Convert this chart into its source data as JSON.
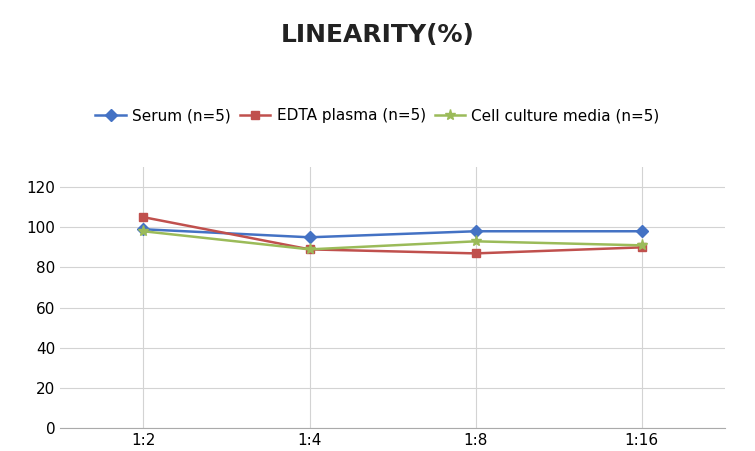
{
  "title": "LINEARITY(%)",
  "x_labels": [
    "1:2",
    "1:4",
    "1:8",
    "1:16"
  ],
  "x_positions": [
    0,
    1,
    2,
    3
  ],
  "series": [
    {
      "label": "Serum (n=5)",
      "values": [
        99,
        95,
        98,
        98
      ],
      "color": "#4472C4",
      "marker": "D",
      "markersize": 6,
      "linewidth": 1.8
    },
    {
      "label": "EDTA plasma (n=5)",
      "values": [
        105,
        89,
        87,
        90
      ],
      "color": "#C0504D",
      "marker": "s",
      "markersize": 6,
      "linewidth": 1.8
    },
    {
      "label": "Cell culture media (n=5)",
      "values": [
        98,
        89,
        93,
        91
      ],
      "color": "#9BBB59",
      "marker": "*",
      "markersize": 8,
      "linewidth": 1.8
    }
  ],
  "ylim": [
    0,
    130
  ],
  "yticks": [
    0,
    20,
    40,
    60,
    80,
    100,
    120
  ],
  "background_color": "#ffffff",
  "grid_color": "#d3d3d3",
  "title_fontsize": 18,
  "legend_fontsize": 11,
  "tick_fontsize": 11
}
